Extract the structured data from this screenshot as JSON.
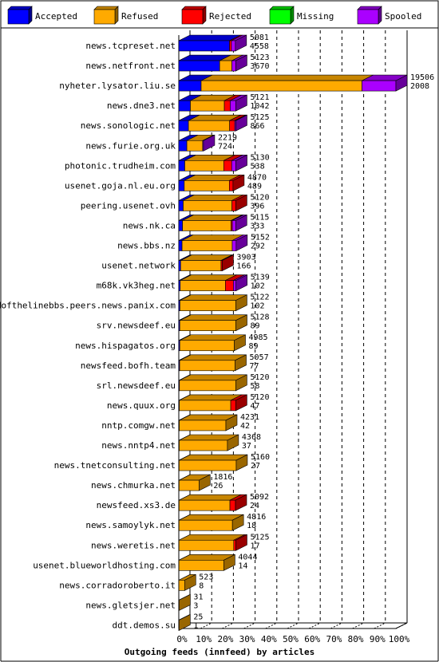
{
  "chart_data": {
    "type": "bar",
    "orientation": "horizontal",
    "stacked": true,
    "xlabel": "Outgoing feeds (innfeed) by articles",
    "x_unit": "%",
    "xlim": [
      0,
      100
    ],
    "x_ticks": [
      0,
      10,
      20,
      30,
      40,
      50,
      60,
      70,
      80,
      90,
      100
    ],
    "grid": "vertical dashed",
    "legend_position": "top",
    "series": [
      {
        "name": "Accepted",
        "color": "#0000ff"
      },
      {
        "name": "Refused",
        "color": "#ffaa00"
      },
      {
        "name": "Rejected",
        "color": "#ff0000"
      },
      {
        "name": "Missing",
        "color": "#00ff00"
      },
      {
        "name": "Spooled",
        "color": "#aa00ff"
      }
    ],
    "categories": [
      "news.tcpreset.net",
      "news.netfront.net",
      "nyheter.lysator.liu.se",
      "news.dne3.net",
      "news.sonologic.net",
      "news.furie.org.uk",
      "photonic.trudheim.com",
      "usenet.goja.nl.eu.org",
      "peering.usenet.ovh",
      "news.nk.ca",
      "news.bbs.nz",
      "usenet.network",
      "m68k.vk3heg.net",
      "endofthelinebbs.peers.news.panix.com",
      "srv.newsdeef.eu",
      "news.hispagatos.org",
      "newsfeed.bofh.team",
      "srl.newsdeef.eu",
      "news.quux.org",
      "nntp.comgw.net",
      "news.nntp4.net",
      "news.tnetconsulting.net",
      "news.chmurka.net",
      "newsfeed.xs3.de",
      "news.samoylyk.net",
      "news.weretis.net",
      "usenet.blueworldhosting.com",
      "news.corradoroberto.it",
      "news.gletsjer.net",
      "ddt.demos.su"
    ],
    "offered": [
      5081,
      5123,
      19506,
      5121,
      5125,
      2219,
      5130,
      4870,
      5120,
      5115,
      5152,
      3903,
      5139,
      5122,
      5128,
      4985,
      5057,
      5120,
      5120,
      4231,
      4368,
      5160,
      1816,
      5092,
      4816,
      5125,
      4044,
      523,
      31,
      25
    ],
    "accepted": [
      4558,
      3670,
      2008,
      1042,
      866,
      724,
      538,
      489,
      396,
      333,
      292,
      166,
      102,
      102,
      89,
      89,
      77,
      58,
      47,
      42,
      37,
      27,
      26,
      24,
      18,
      17,
      14,
      8,
      3,
      1
    ],
    "segments": {
      "Accepted": [
        4558,
        3670,
        2008,
        1042,
        866,
        724,
        538,
        489,
        396,
        333,
        292,
        166,
        102,
        102,
        89,
        89,
        77,
        58,
        47,
        42,
        37,
        27,
        26,
        24,
        18,
        17,
        14,
        8,
        3,
        1
      ],
      "Refused": [
        0,
        1100,
        14450,
        3050,
        3700,
        1420,
        3500,
        4050,
        4380,
        4370,
        4510,
        3630,
        3270,
        5020,
        5039,
        4896,
        4980,
        5062,
        4620,
        4189,
        4331,
        5133,
        1790,
        4570,
        4798,
        4918,
        4030,
        515,
        28,
        24
      ],
      "Rejected": [
        170,
        0,
        0,
        529,
        459,
        0,
        712,
        331,
        344,
        107,
        0,
        107,
        580,
        0,
        0,
        0,
        0,
        0,
        453,
        0,
        0,
        0,
        0,
        498,
        0,
        190,
        0,
        0,
        0,
        0
      ],
      "Missing": [
        0,
        0,
        0,
        0,
        0,
        0,
        0,
        0,
        0,
        0,
        0,
        0,
        0,
        0,
        0,
        0,
        0,
        0,
        0,
        0,
        0,
        0,
        0,
        0,
        0,
        0,
        0,
        0,
        0,
        0
      ],
      "Spooled": [
        353,
        353,
        3048,
        500,
        100,
        75,
        380,
        0,
        0,
        305,
        350,
        0,
        187,
        0,
        0,
        0,
        0,
        0,
        0,
        0,
        0,
        0,
        0,
        0,
        0,
        0,
        0,
        0,
        0,
        0
      ]
    }
  }
}
